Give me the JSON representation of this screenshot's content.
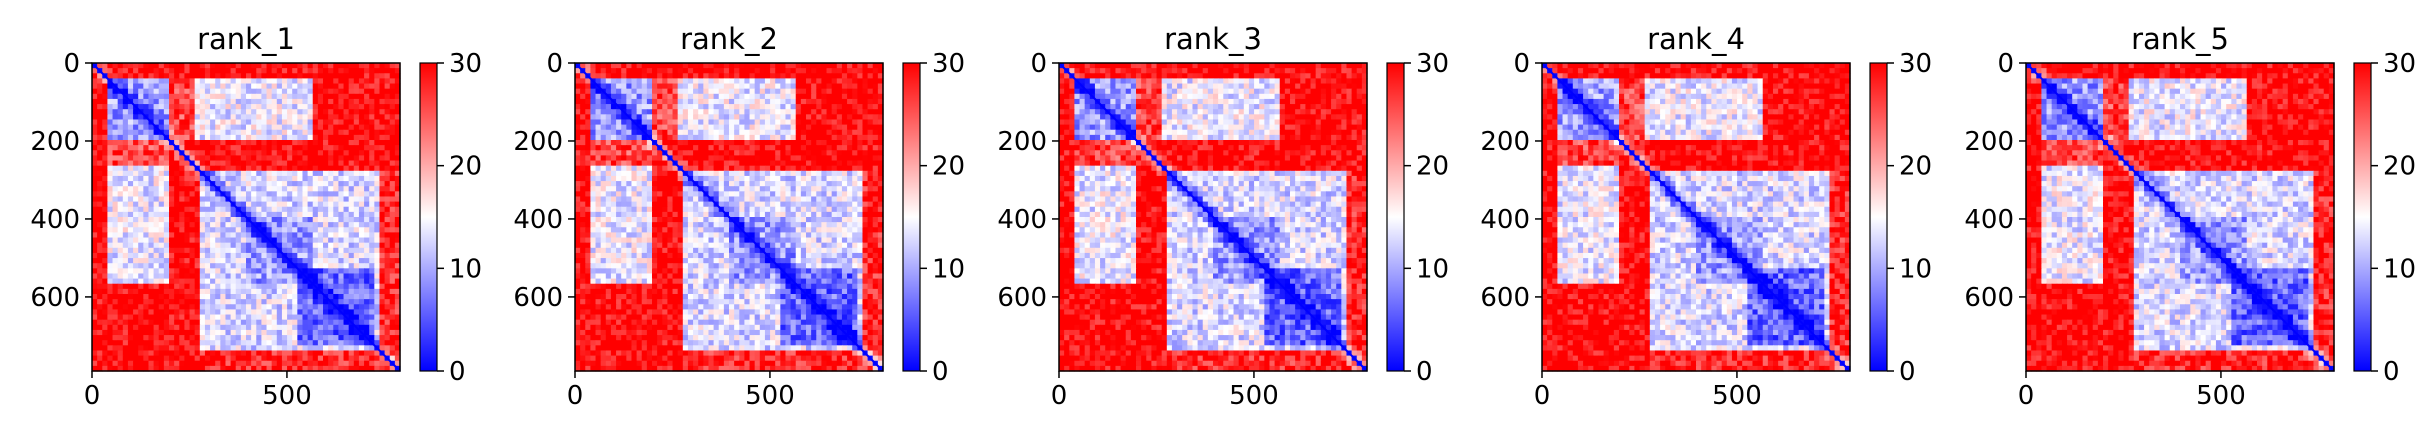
{
  "chart_data": [
    {
      "type": "heatmap",
      "title": "rank_1",
      "xticks": [
        0,
        500
      ],
      "yticks": [
        0,
        200,
        400,
        600
      ],
      "xlim": [
        0,
        790
      ],
      "ylim": [
        790,
        0
      ],
      "colorbar": {
        "ticks": [
          0,
          10,
          20,
          30
        ],
        "range": [
          0,
          30
        ],
        "colormap": "bwr"
      }
    },
    {
      "type": "heatmap",
      "title": "rank_2",
      "xticks": [
        0,
        500
      ],
      "yticks": [
        0,
        200,
        400,
        600
      ],
      "xlim": [
        0,
        790
      ],
      "ylim": [
        790,
        0
      ],
      "colorbar": {
        "ticks": [
          0,
          10,
          20,
          30
        ],
        "range": [
          0,
          30
        ],
        "colormap": "bwr"
      }
    },
    {
      "type": "heatmap",
      "title": "rank_3",
      "xticks": [
        0,
        500
      ],
      "yticks": [
        0,
        200,
        400,
        600
      ],
      "xlim": [
        0,
        790
      ],
      "ylim": [
        790,
        0
      ],
      "colorbar": {
        "ticks": [
          0,
          10,
          20,
          30
        ],
        "range": [
          0,
          30
        ],
        "colormap": "bwr"
      }
    },
    {
      "type": "heatmap",
      "title": "rank_4",
      "xticks": [
        0,
        500
      ],
      "yticks": [
        0,
        200,
        400,
        600
      ],
      "xlim": [
        0,
        790
      ],
      "ylim": [
        790,
        0
      ],
      "colorbar": {
        "ticks": [
          0,
          10,
          20,
          30
        ],
        "range": [
          0,
          30
        ],
        "colormap": "bwr"
      }
    },
    {
      "type": "heatmap",
      "title": "rank_5",
      "xticks": [
        0,
        500
      ],
      "yticks": [
        0,
        200,
        400,
        600
      ],
      "xlim": [
        0,
        790
      ],
      "ylim": [
        790,
        0
      ],
      "colorbar": {
        "ticks": [
          0,
          10,
          20,
          30
        ],
        "range": [
          0,
          30
        ],
        "colormap": "bwr"
      }
    }
  ],
  "colors": {
    "low": "#0000ff",
    "mid": "#ffffff",
    "high": "#ff0000",
    "axis": "#000000"
  }
}
